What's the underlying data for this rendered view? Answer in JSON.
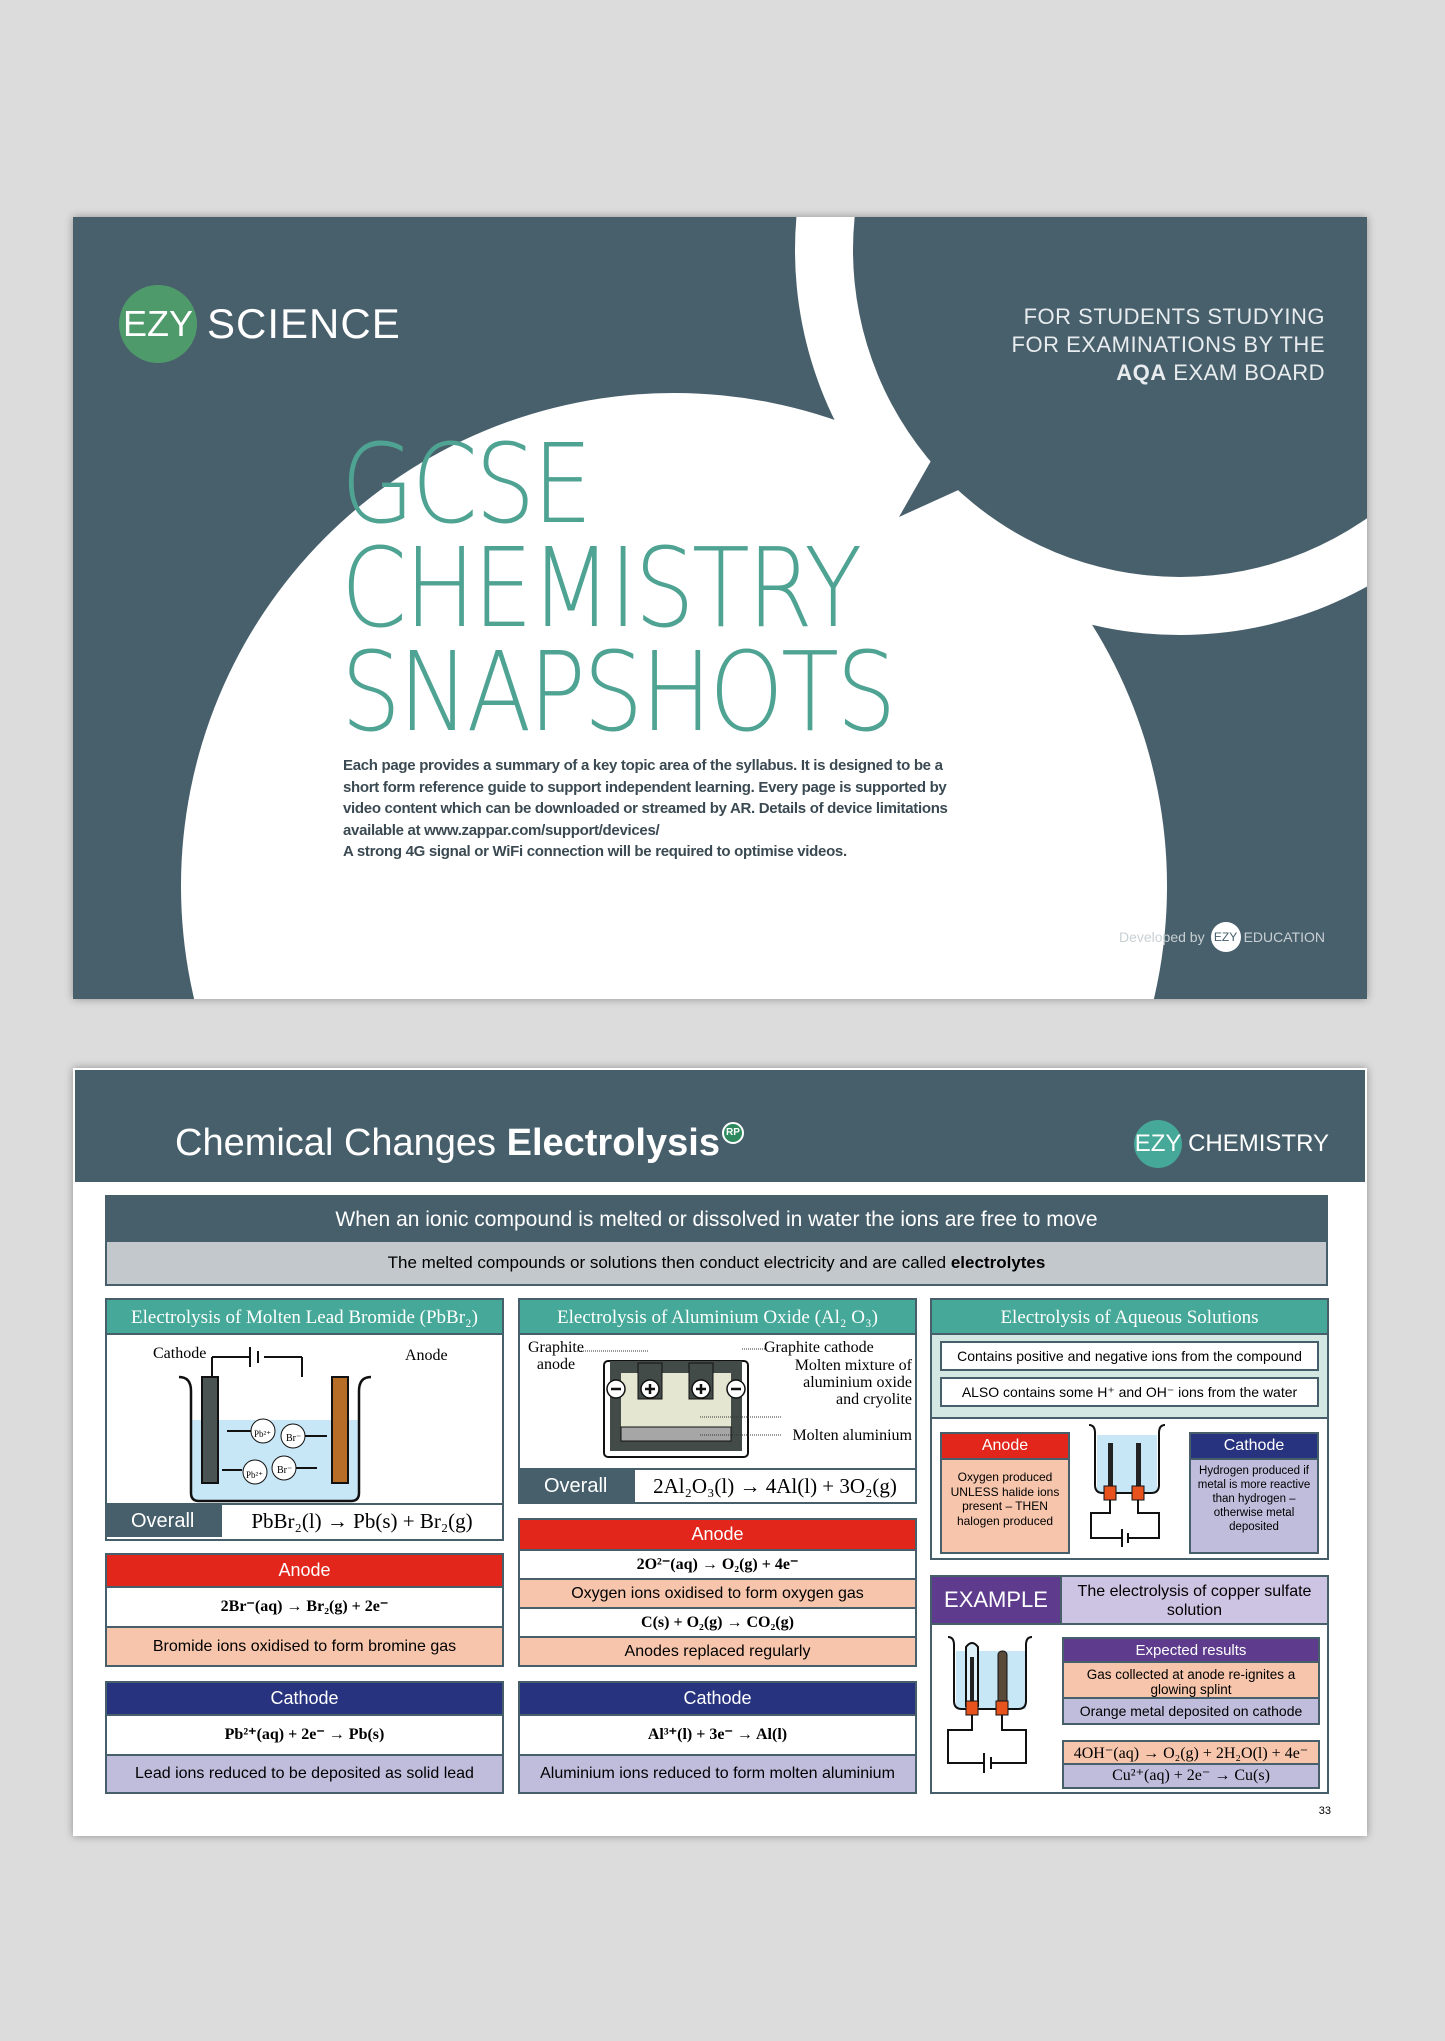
{
  "cover": {
    "logo": {
      "badge": "EZY",
      "word": "SCIENCE"
    },
    "board_lines": [
      "FOR STUDENTS STUDYING",
      "FOR EXAMINATIONS BY THE"
    ],
    "board_bold": "AQA",
    "board_rest": " EXAM BOARD",
    "title_lines": [
      "GCSE",
      "CHEMISTRY",
      "SNAPSHOTS"
    ],
    "blurb": [
      "Each page provides a summary of a key topic area of the syllabus. It is designed to be a",
      "short form reference guide to support independent learning. Every page is supported by",
      "video content which can be downloaded or streamed by AR. Details of device limitations",
      "available at www.zappar.com/support/devices/",
      "A strong 4G signal or WiFi connection will be required to optimise videos."
    ],
    "developed": {
      "prefix": "Developed by",
      "badge": "EZY",
      "word": "EDUCATION"
    },
    "colors": {
      "background": "#48606c",
      "title": "#4fa393",
      "logo": "#4f9a6a"
    }
  },
  "page": {
    "title_light": "Chemical Changes ",
    "title_bold": "Electrolysis",
    "rp_badge": "RP",
    "brand": {
      "badge": "EZY",
      "word": "CHEMISTRY"
    },
    "banner": {
      "main": "When an ionic compound is melted or dissolved in water the ions are free to move",
      "sub_prefix": "The melted compounds or solutions then conduct electricity and are called ",
      "sub_bold": "electrolytes"
    },
    "col1": {
      "title": "Electrolysis of Molten Lead Bromide (PbBr₂)",
      "labels": {
        "cathode": "Cathode",
        "anode": "Anode",
        "pb": "Pb²⁺",
        "br": "Br⁻"
      },
      "overall_label": "Overall",
      "overall_eq": "PbBr₂(l) → Pb(s) + Br₂(g)",
      "anode": {
        "title": "Anode",
        "eq": "2Br⁻(aq) → Br₂(g) + 2e⁻",
        "desc": "Bromide ions oxidised to form bromine gas"
      },
      "cathode": {
        "title": "Cathode",
        "eq": "Pb²⁺(aq) + 2e⁻ → Pb(s)",
        "desc": "Lead ions reduced to be deposited as solid lead"
      }
    },
    "col2": {
      "title": "Electrolysis of Aluminium Oxide (Al₂ O₃)",
      "labels": {
        "anode": "Graphite anode",
        "cathode": "Graphite cathode",
        "mixture": "Molten mixture of aluminium oxide and cryolite",
        "aluminium": "Molten aluminium"
      },
      "overall_label": "Overall",
      "overall_eq": "2Al₂O₃(l) → 4Al(l) + 3O₂(g)",
      "anode": {
        "title": "Anode",
        "eq1": "2O²⁻(aq) → O₂(g) + 4e⁻",
        "desc1": "Oxygen ions oxidised to form oxygen gas",
        "eq2": "C(s) + O₂(g) → CO₂(g)",
        "desc2": "Anodes replaced regularly"
      },
      "cathode": {
        "title": "Cathode",
        "eq": "Al³⁺(l) + 3e⁻ → Al(l)",
        "desc": "Aluminium ions reduced to form molten aluminium"
      }
    },
    "col3": {
      "title": "Electrolysis of Aqueous Solutions",
      "facts": [
        "Contains positive and negative ions from the compound",
        "ALSO contains some H⁺ and OH⁻ ions from the water"
      ],
      "anode": {
        "title": "Anode",
        "desc": "Oxygen produced UNLESS halide ions present – THEN halogen produced"
      },
      "cathode": {
        "title": "Cathode",
        "desc": "Hydrogen produced if metal is more reactive than hydrogen – otherwise metal deposited"
      },
      "example": {
        "tag": "EXAMPLE",
        "title": "The electrolysis of copper sulfate solution",
        "results_title": "Expected results",
        "result1": "Gas collected at anode re-ignites a glowing splint",
        "result2": "Orange metal deposited on cathode",
        "eq1": "4OH⁻(aq) → O₂(g) + 2H₂O(l) + 4e⁻",
        "eq2": "Cu²⁺(aq) + 2e⁻ → Cu(s)"
      }
    },
    "page_number": "33",
    "colors": {
      "header": "#465f6b",
      "teal": "#45a898",
      "anode": "#e2261b",
      "cathode": "#27337e",
      "peach": "#f6c5ac",
      "lavender": "#c0bcdc",
      "example": "#5e3b8c"
    }
  }
}
